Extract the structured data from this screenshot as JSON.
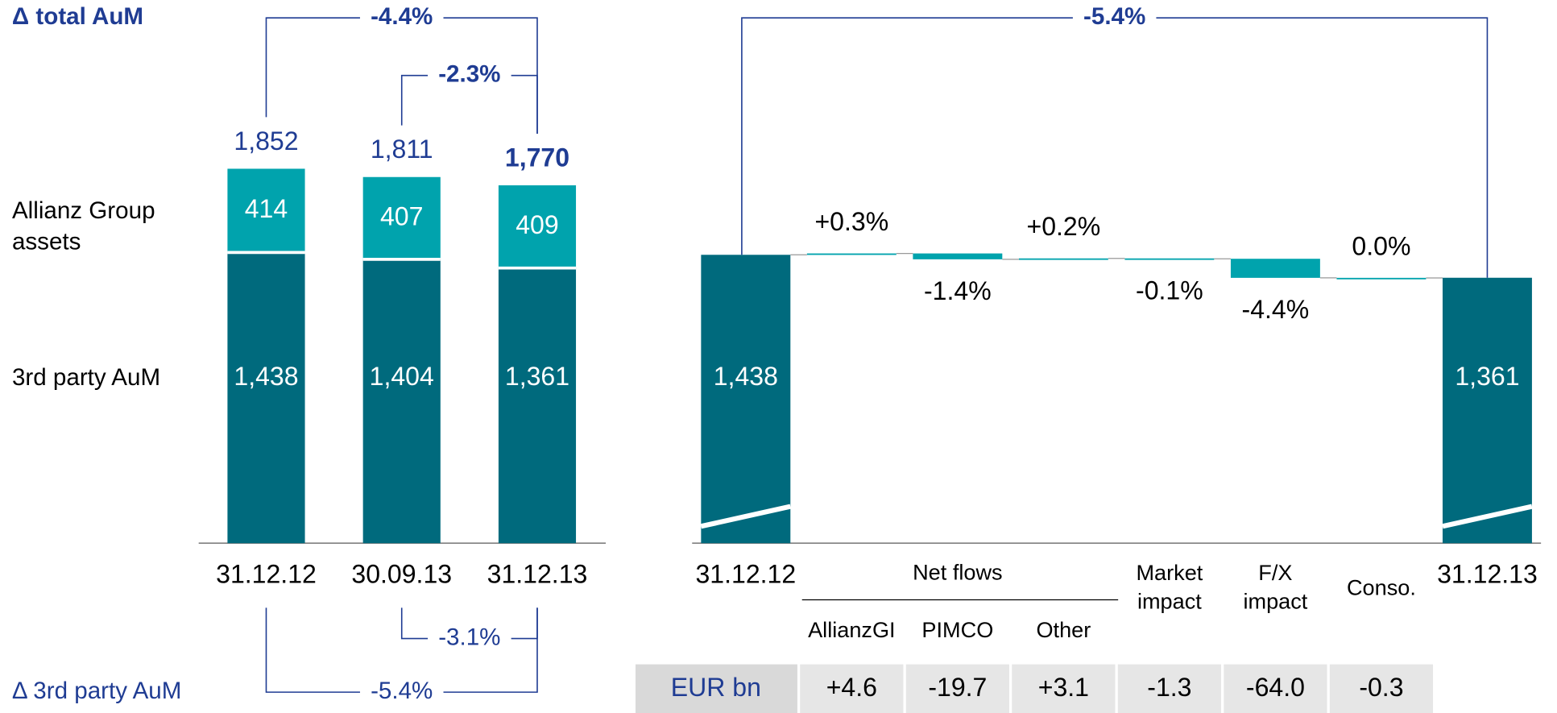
{
  "chart_data": [
    {
      "type": "stacked-bar",
      "title": "Δ total AuM",
      "bottom_title": "Δ 3rd party AuM",
      "categories": [
        "31.12.12",
        "30.09.13",
        "31.12.13"
      ],
      "series": [
        {
          "name": "3rd party AuM",
          "color": "#006a7d",
          "values": [
            1438,
            1404,
            1361
          ],
          "value_labels": [
            "1,438",
            "1,404",
            "1,361"
          ]
        },
        {
          "name": "Allianz Group assets",
          "color": "#00a3ad",
          "values": [
            414,
            407,
            409
          ],
          "value_labels": [
            "414",
            "407",
            "409"
          ]
        }
      ],
      "totals": [
        1852,
        1811,
        1770
      ],
      "total_labels": [
        "1,852",
        "1,811",
        "1,770"
      ],
      "ylim": [
        0,
        2500
      ],
      "brackets": [
        {
          "from": "31.12.12",
          "to": "31.12.13",
          "label": "-4.4%",
          "position": "top"
        },
        {
          "from": "30.09.13",
          "to": "31.12.13",
          "label": "-2.3%",
          "position": "top"
        },
        {
          "from": "30.09.13",
          "to": "31.12.13",
          "label": "-3.1%",
          "position": "bottom"
        },
        {
          "from": "31.12.12",
          "to": "31.12.13",
          "label": "-5.4%",
          "position": "bottom"
        }
      ]
    },
    {
      "type": "waterfall",
      "categories": [
        "31.12.12",
        "AllianzGI",
        "PIMCO",
        "Other",
        "Market impact",
        "F/X impact",
        "Conso.",
        "31.12.13"
      ],
      "group_label": "Net flows",
      "measure": [
        "absolute",
        "relative",
        "relative",
        "relative",
        "relative",
        "relative",
        "relative",
        "absolute"
      ],
      "values": [
        1438,
        4.6,
        -19.7,
        3.1,
        -1.3,
        -64.0,
        -0.3,
        1361
      ],
      "value_labels": [
        "1,438",
        "+4.6",
        "-19.7",
        "+3.1",
        "-1.3",
        "-64.0",
        "-0.3",
        "1,361"
      ],
      "percent_labels": [
        null,
        "+0.3%",
        "-1.4%",
        "+0.2%",
        "-0.1%",
        "-4.4%",
        "0.0%",
        null
      ],
      "unit_label": "EUR bn",
      "absolute_color": "#006a7d",
      "relative_color": "#00a3ad",
      "ylim": [
        470,
        1500
      ],
      "axis_break": true,
      "brackets": [
        {
          "from": "31.12.12",
          "to": "31.12.13",
          "label": "-5.4%",
          "position": "top"
        }
      ]
    }
  ]
}
